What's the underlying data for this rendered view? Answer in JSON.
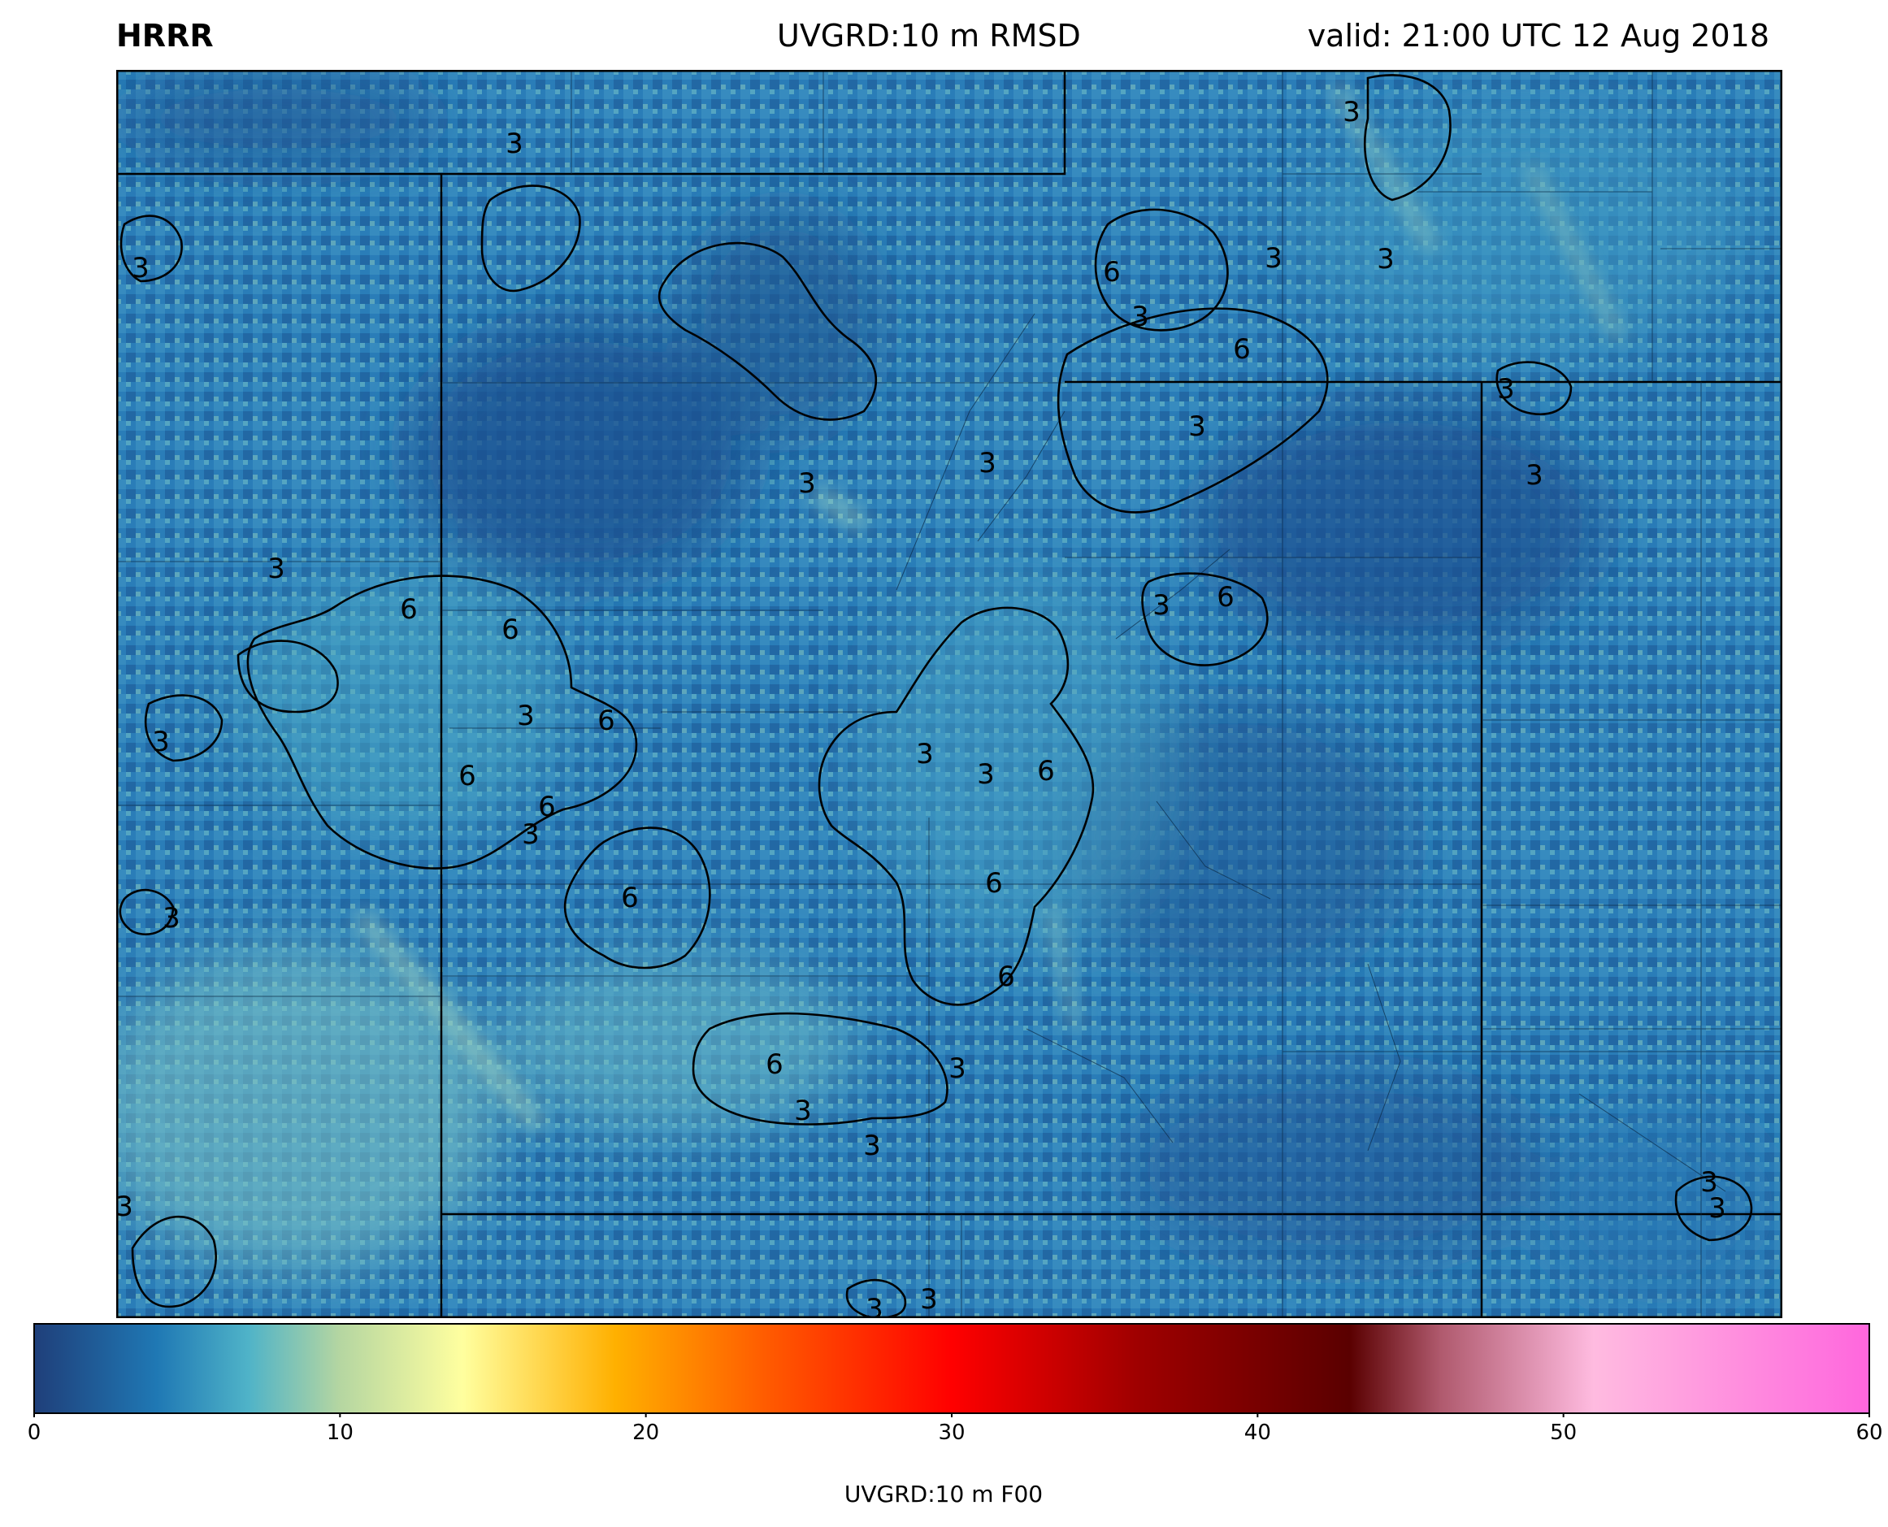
{
  "header": {
    "model": "HRRR",
    "field": "UVGRD:10 m RMSD",
    "valid": "valid: 21:00 UTC 12 Aug 2018"
  },
  "colorbar": {
    "label": "UVGRD:10 m F00",
    "min": 0,
    "max": 60,
    "ticks": [
      "0",
      "10",
      "20",
      "30",
      "40",
      "50",
      "60"
    ],
    "colormap_stops": [
      {
        "value": 0,
        "color": "#1f3f7a"
      },
      {
        "value": 4,
        "color": "#1f78b4"
      },
      {
        "value": 7,
        "color": "#4fb3c8"
      },
      {
        "value": 10,
        "color": "#b5d6a1"
      },
      {
        "value": 14,
        "color": "#ffff9f"
      },
      {
        "value": 19,
        "color": "#ffb000"
      },
      {
        "value": 24,
        "color": "#ff5a00"
      },
      {
        "value": 30,
        "color": "#ff0000"
      },
      {
        "value": 36,
        "color": "#a00000"
      },
      {
        "value": 43,
        "color": "#5a0000"
      },
      {
        "value": 46,
        "color": "#b05a6e"
      },
      {
        "value": 51,
        "color": "#ffbbe0"
      },
      {
        "value": 60,
        "color": "#ff66dd"
      }
    ]
  },
  "map": {
    "contour_levels": [
      "3",
      "6"
    ],
    "contour_color": "#000000",
    "dominant_field_colors": [
      "#1e4f8f",
      "#2a7db8",
      "#5fb4c6",
      "#9fd3bf"
    ]
  }
}
